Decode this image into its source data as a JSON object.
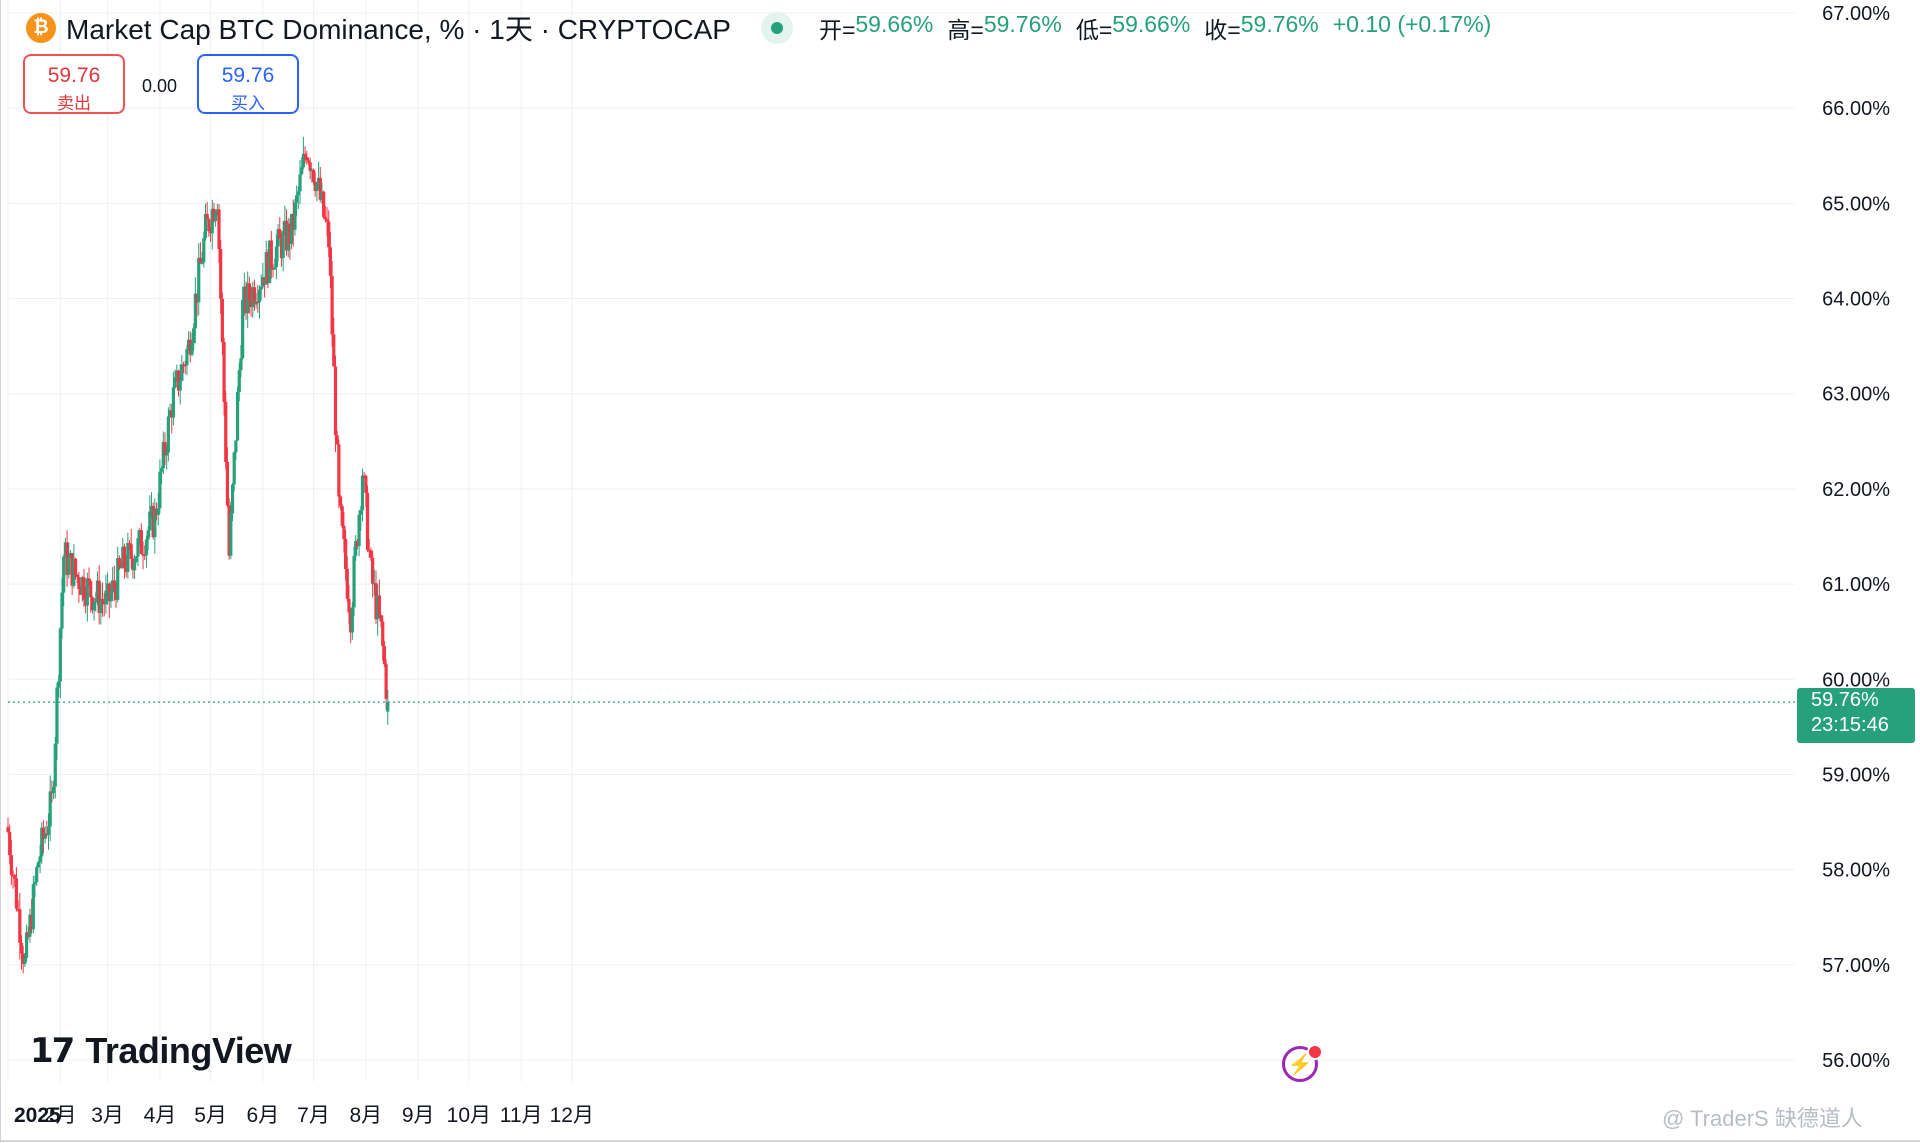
{
  "header": {
    "coin_symbol": "₿",
    "title": "Market Cap BTC Dominance, % · 1天 · CRYPTOCAP",
    "ohlc": {
      "open_label": "开=",
      "open": "59.66%",
      "high_label": "高=",
      "high": "59.76%",
      "low_label": "低=",
      "low": "59.66%",
      "close_label": "收=",
      "close": "59.76%",
      "change": "+0.10 (+0.17%)"
    }
  },
  "trade": {
    "sell_price": "59.76",
    "sell_label": "卖出",
    "spread": "0.00",
    "buy_price": "59.76",
    "buy_label": "买入"
  },
  "price_tag": {
    "price": "59.76%",
    "countdown": "23:15:46"
  },
  "logo": {
    "mark": "17",
    "text": "TradingView"
  },
  "watermark": "@ TraderS 缺德道人",
  "colors": {
    "up": "#26a17b",
    "down": "#f23645",
    "grid": "#eef0f3",
    "text": "#131722",
    "accent_purple": "#9c27b0"
  },
  "icons": {
    "coin": "bitcoin-icon",
    "status": "market-open-dot-icon",
    "flash": "lightning-icon"
  },
  "chart_data": {
    "type": "candlestick",
    "ylim": [
      56,
      67
    ],
    "yticks": [
      "56.00%",
      "57.00%",
      "58.00%",
      "59.00%",
      "60.00%",
      "61.00%",
      "62.00%",
      "63.00%",
      "64.00%",
      "65.00%",
      "66.00%",
      "67.00%"
    ],
    "xticks": [
      "2025",
      "2月",
      "3月",
      "4月",
      "5月",
      "6月",
      "7月",
      "8月",
      "9月",
      "10月",
      "11月",
      "12月"
    ],
    "last_price": 59.76,
    "grid": true,
    "x": [
      "2025-01-01",
      "2025-01-11",
      "2025-01-19",
      "2025-01-27",
      "2025-02-03",
      "2025-02-10",
      "2025-02-20",
      "2025-03-01",
      "2025-03-10",
      "2025-03-20",
      "2025-03-29",
      "2025-04-08",
      "2025-04-18",
      "2025-04-28",
      "2025-05-05",
      "2025-05-12",
      "2025-05-20",
      "2025-05-30",
      "2025-06-08",
      "2025-06-18",
      "2025-06-27",
      "2025-07-02",
      "2025-07-10",
      "2025-07-16",
      "2025-07-23",
      "2025-07-30",
      "2025-08-04",
      "2025-08-10",
      "2025-08-14"
    ],
    "close": [
      58.4,
      57.0,
      58.1,
      58.7,
      61.3,
      61.1,
      60.9,
      60.8,
      61.2,
      61.4,
      61.7,
      62.9,
      63.5,
      64.7,
      65.1,
      61.3,
      63.9,
      64.2,
      64.5,
      64.7,
      65.6,
      65.3,
      64.6,
      61.8,
      60.7,
      62.2,
      61.1,
      60.5,
      59.76
    ]
  }
}
